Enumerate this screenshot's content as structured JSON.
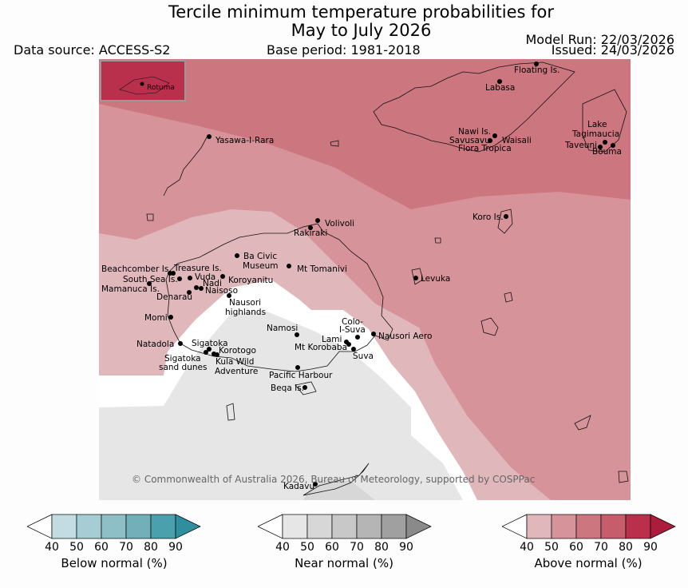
{
  "title_line1": "Tercile minimum temperature probabilities for",
  "title_line2": "May to July 2026",
  "data_source": "Data source: ACCESS-S2",
  "base_period": "Base period: 1981-2018",
  "model_run": "Model Run: 22/03/2026",
  "issued": "Issued: 24/03/2026",
  "credit": "© Commonwealth of Australia 2026, Bureau of Meteorology, supported by COSPPac",
  "inset_label": "Rotuma",
  "places": {
    "floating_is": "Floating Is.",
    "labasa": "Labasa",
    "yasawa": "Yasawa-I-Rara",
    "nawi": "Nawi Is.",
    "savusavu": "Savusavu",
    "waisali": "Waisali",
    "flora": "Flora Tropica",
    "lake": "Lake",
    "tagimaucia": "Tagimaucia",
    "taveuni": "Taveuni",
    "bouma": "Bouma",
    "koro": "Koro Is.",
    "volivoli": "Volivoli",
    "rakiraki": "Rakiraki",
    "ba_civic1": "Ba Civic",
    "ba_civic2": "Museum",
    "mt_tomanivi": "Mt Tomanivi",
    "beachcomber": "Beachcomber Is.",
    "treasure": "Treasure Is.",
    "south_sea": "South Sea Is.",
    "vuda": "Vuda",
    "koroyanitu": "Koroyanitu",
    "nadi": "Nadi",
    "mamanuca": "Mamanuca Is.",
    "naisoso": "Naisoso",
    "denarau": "Denarau",
    "nausori_hl1": "Nausori",
    "nausori_hl2": "highlands",
    "levuka": "Levuka",
    "momi": "Momi",
    "namosi": "Namosi",
    "colo1": "Colo-",
    "colo2": "I-Suva",
    "lami": "Lami",
    "nausori_aero": "Nausori Aero",
    "natadola": "Natadola",
    "sigatoka": "Sigatoka",
    "korotogo": "Korotogo",
    "mt_korobaba": "Mt Korobaba",
    "suva": "Suva",
    "sig_dunes1": "Sigatoka",
    "sig_dunes2": "sand dunes",
    "kula1": "Kula Wild",
    "kula2": "Adventure",
    "pacific_harbour": "Pacific Harbour",
    "beqa": "Beqa Is.",
    "kadavu": "Kadavu"
  },
  "colorbars": [
    {
      "title": "Below normal (%)",
      "ticks": [
        "40",
        "50",
        "60",
        "70",
        "80",
        "90"
      ],
      "colors": [
        "#c2dce1",
        "#a6cdd3",
        "#8ebfc6",
        "#72b0b9",
        "#4aa0ad",
        "#2f8f9e"
      ]
    },
    {
      "title": "Near normal (%)",
      "ticks": [
        "40",
        "50",
        "60",
        "70",
        "80",
        "90"
      ],
      "colors": [
        "#e6e6e6",
        "#d7d7d7",
        "#c8c8c8",
        "#b5b5b5",
        "#a0a0a0",
        "#8a8a8a"
      ]
    },
    {
      "title": "Above normal (%)",
      "ticks": [
        "40",
        "50",
        "60",
        "70",
        "80",
        "90"
      ],
      "colors": [
        "#e0b8bc",
        "#d7939a",
        "#cc7680",
        "#c55d6b",
        "#b8304c",
        "#ac1c3c"
      ]
    }
  ],
  "legend_colors": {
    "above_40": "#e0b8bc",
    "above_50": "#d7939a",
    "above_60": "#cc7680",
    "above_80": "#b8304c",
    "near_40": "#e6e6e6",
    "near_50": "#d7d7d7",
    "no_signal": "#ffffff"
  }
}
